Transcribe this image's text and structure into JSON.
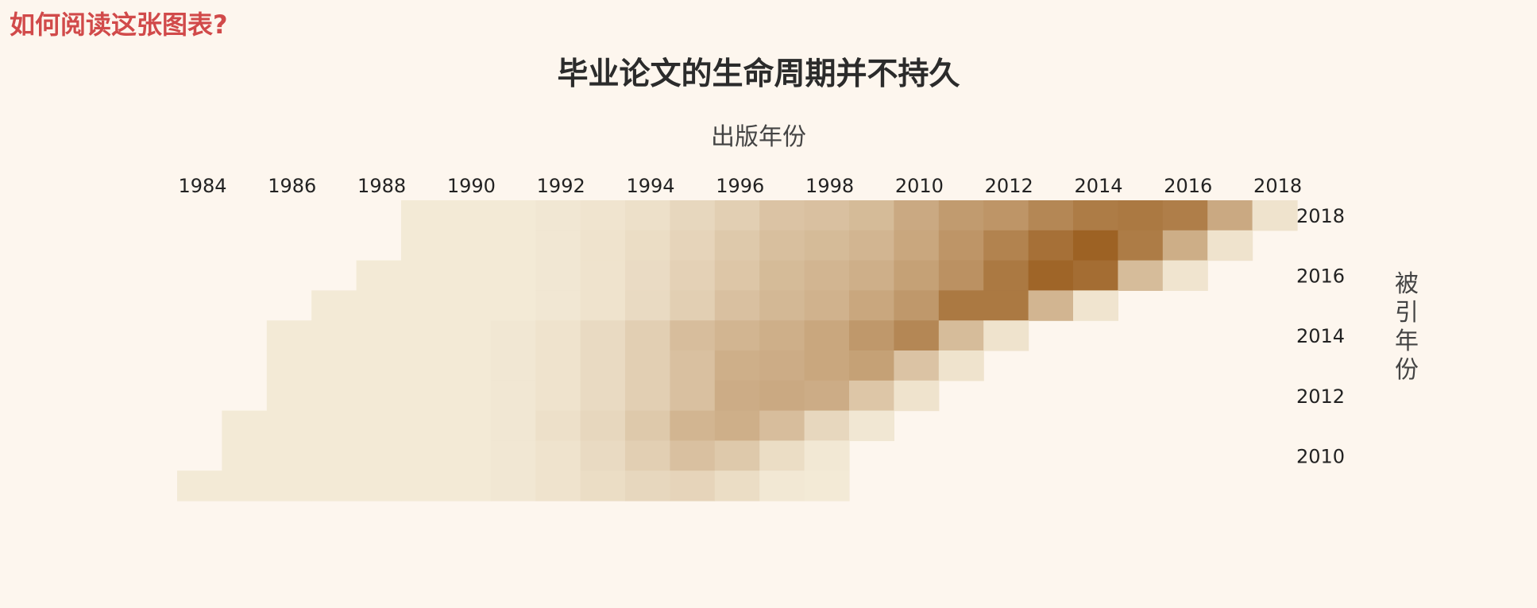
{
  "header": {
    "help_title": "如何阅读这张图表?"
  },
  "colors": {
    "background": "#fdf6ee",
    "help_title": "#d14a4a",
    "cell_low": "#f6eedc",
    "cell_high": "#9b5f20"
  },
  "chart_data": {
    "type": "heatmap",
    "title": "毕业论文的生命周期并不持久",
    "xlabel": "出版年份",
    "ylabel": "被引年份",
    "x_tick_labels": [
      "1984",
      "1986",
      "1988",
      "1990",
      "1992",
      "1994",
      "1996",
      "1998",
      "2010",
      "2012",
      "2014",
      "2016",
      "2018"
    ],
    "y_tick_labels": [
      "2018",
      "2016",
      "2014",
      "2012",
      "2010"
    ],
    "columns": 25,
    "rows": 10,
    "row_start_columns": [
      5,
      5,
      4,
      3,
      2,
      2,
      2,
      1,
      1,
      0
    ],
    "values": [
      [
        0.03,
        0.03,
        0.03,
        0.05,
        0.07,
        0.1,
        0.16,
        0.22,
        0.3,
        0.32,
        0.36,
        0.48,
        0.58,
        0.62,
        0.72,
        0.8,
        0.82,
        0.78,
        0.48,
        0.08
      ],
      [
        0.03,
        0.03,
        0.03,
        0.05,
        0.08,
        0.12,
        0.18,
        0.26,
        0.33,
        0.36,
        0.4,
        0.5,
        0.62,
        0.75,
        0.88,
        0.98,
        0.8,
        0.45,
        0.08
      ],
      [
        0.03,
        0.03,
        0.03,
        0.03,
        0.05,
        0.08,
        0.13,
        0.2,
        0.28,
        0.36,
        0.4,
        0.44,
        0.54,
        0.65,
        0.82,
        0.96,
        0.9,
        0.35,
        0.07
      ],
      [
        0.03,
        0.03,
        0.03,
        0.03,
        0.03,
        0.05,
        0.08,
        0.14,
        0.22,
        0.32,
        0.38,
        0.42,
        0.5,
        0.6,
        0.82,
        0.82,
        0.4,
        0.07
      ],
      [
        0.03,
        0.03,
        0.03,
        0.03,
        0.03,
        0.05,
        0.08,
        0.14,
        0.22,
        0.34,
        0.4,
        0.44,
        0.5,
        0.6,
        0.72,
        0.35,
        0.08
      ],
      [
        0.03,
        0.03,
        0.03,
        0.03,
        0.03,
        0.05,
        0.08,
        0.14,
        0.22,
        0.32,
        0.44,
        0.46,
        0.5,
        0.54,
        0.3,
        0.08
      ],
      [
        0.03,
        0.03,
        0.03,
        0.03,
        0.03,
        0.05,
        0.08,
        0.14,
        0.22,
        0.32,
        0.46,
        0.48,
        0.46,
        0.28,
        0.08
      ],
      [
        0.03,
        0.03,
        0.03,
        0.03,
        0.03,
        0.03,
        0.05,
        0.1,
        0.16,
        0.26,
        0.4,
        0.44,
        0.34,
        0.16,
        0.05
      ],
      [
        0.03,
        0.03,
        0.03,
        0.03,
        0.03,
        0.03,
        0.05,
        0.08,
        0.14,
        0.22,
        0.32,
        0.26,
        0.12,
        0.04
      ],
      [
        0.03,
        0.03,
        0.03,
        0.03,
        0.03,
        0.03,
        0.03,
        0.05,
        0.08,
        0.12,
        0.16,
        0.18,
        0.12,
        0.04,
        0.03
      ]
    ]
  }
}
